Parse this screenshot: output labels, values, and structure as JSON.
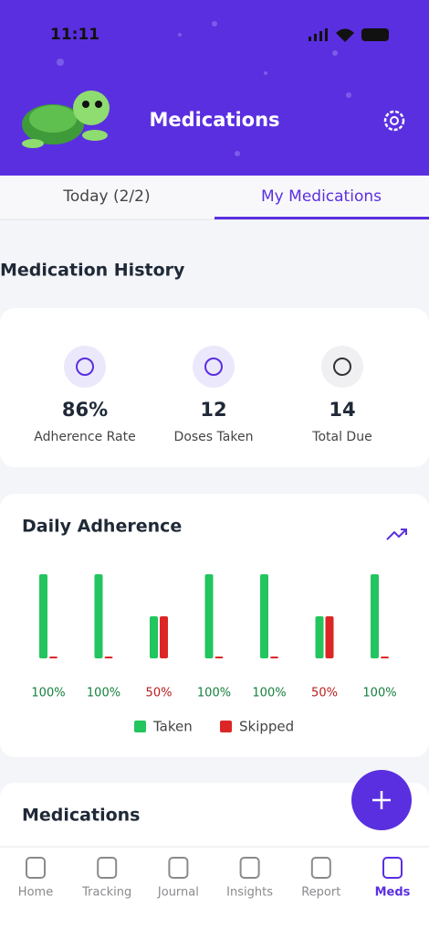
{
  "status_bar": {
    "time": "11:11"
  },
  "header": {
    "title": "Medications"
  },
  "tabs": [
    "Today (2/2)",
    "My Medications"
  ],
  "history": {
    "title": "Medication History",
    "stats": [
      {
        "value": "86%",
        "label": "Adherence Rate"
      },
      {
        "value": "12",
        "label": "Doses Taken"
      },
      {
        "value": "14",
        "label": "Total Due"
      }
    ]
  },
  "chart_data": {
    "type": "bar",
    "title": "Daily Adherence",
    "categories": [
      null,
      null,
      null,
      null,
      null,
      null,
      null
    ],
    "series": [
      {
        "name": "Taken",
        "color": "#22c55e",
        "values": [
          2,
          2,
          1,
          2,
          2,
          1,
          2
        ]
      },
      {
        "name": "Skipped",
        "color": "#dc2626",
        "values": [
          0,
          0,
          1,
          0,
          0,
          1,
          0
        ]
      }
    ],
    "ylim": [
      0,
      2
    ],
    "adherence": {
      "values": [
        100,
        100,
        50,
        100,
        100,
        50,
        100
      ],
      "value_labels": [
        "100%",
        "100%",
        "50%",
        "100%",
        "100%",
        "50%",
        "100%"
      ],
      "colors": [
        "#15803d",
        "#15803d",
        "#b91c1c",
        "#15803d",
        "#15803d",
        "#b91c1c",
        "#15803d"
      ]
    }
  },
  "medications": {
    "title": "Medications"
  },
  "nav": [
    "Home",
    "Tracking",
    "Journal",
    "Insights",
    "Report",
    "Meds"
  ]
}
